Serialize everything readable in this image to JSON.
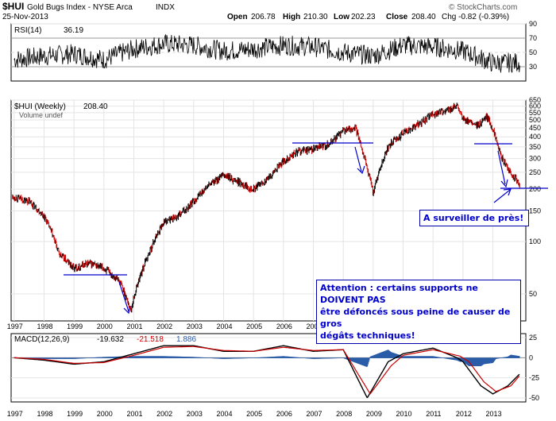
{
  "header": {
    "symbol": "$HUI",
    "name": "Gold Bugs Index - NYSE Arca",
    "exchange": "INDX",
    "date": "25-Nov-2013",
    "open_label": "Open",
    "open": "206.78",
    "high_label": "High",
    "high": "210.30",
    "low_label": "Low",
    "low": "202.23",
    "close_label": "Close",
    "close": "208.40",
    "change": "Chg -0.82 (-0.39%)",
    "watermark": "© StockCharts.com"
  },
  "rsi_panel": {
    "label": "RSI(14)",
    "value": "36.19",
    "ticks": [
      "90",
      "70",
      "50",
      "30"
    ]
  },
  "price_panel": {
    "label": "$HUI (Weekly)",
    "value": "208.40",
    "volume_label": "Volume undef",
    "ticks": [
      "650",
      "600",
      "550",
      "500",
      "450",
      "400",
      "350",
      "300",
      "250",
      "200",
      "150",
      "100",
      "50"
    ]
  },
  "macd_panel": {
    "label": "MACD(12,26,9)",
    "macd": "-19.632",
    "signal": "-21.518",
    "hist": "1.886",
    "ticks": [
      "25",
      "0",
      "-25",
      "-50"
    ]
  },
  "annotations": {
    "watch": "A surveiller de près!",
    "attention_1": "Attention : certains supports ne DOIVENT PAS",
    "attention_2": "être défoncés sous peine de causer de gros",
    "attention_3": "dégâts techniques!"
  },
  "colors": {
    "price_up": "#000000",
    "price_down": "#cc0000",
    "macd": "#000000",
    "signal": "#cc0000",
    "hist": "#2a5ca8",
    "annotation": "#0000cc",
    "grid": "#dddddd"
  },
  "chart_data": [
    {
      "type": "line",
      "title": "RSI(14)",
      "ylim": [
        10,
        90
      ],
      "ticks": [
        30,
        50,
        70,
        90
      ],
      "x": [
        1997,
        1998,
        1999,
        2000,
        2001,
        2002,
        2003,
        2004,
        2005,
        2006,
        2007,
        2008,
        2009,
        2010,
        2011,
        2012,
        2013,
        2013.9
      ],
      "values": [
        40,
        45,
        48,
        40,
        55,
        62,
        60,
        52,
        55,
        60,
        58,
        50,
        45,
        60,
        58,
        52,
        35,
        36
      ]
    },
    {
      "type": "line",
      "title": "$HUI (Weekly)",
      "scale": "log",
      "ylim": [
        35,
        650
      ],
      "x_ticks": [
        "1997",
        "1998",
        "1999",
        "2000",
        "2001",
        "2002",
        "2003",
        "2004",
        "2005",
        "2006",
        "2007",
        "2008",
        "2009",
        "2010",
        "2011",
        "2012",
        "2013"
      ],
      "x": [
        1997.0,
        1997.5,
        1998.0,
        1998.5,
        1999.0,
        1999.5,
        2000.0,
        2000.5,
        2000.9,
        2001.5,
        2002.0,
        2002.5,
        2003.0,
        2003.5,
        2004.0,
        2004.5,
        2005.0,
        2005.5,
        2006.0,
        2006.5,
        2007.0,
        2007.5,
        2008.0,
        2008.4,
        2008.8,
        2009.0,
        2009.5,
        2010.0,
        2010.5,
        2011.0,
        2011.5,
        2011.8,
        2012.0,
        2012.5,
        2012.8,
        2013.0,
        2013.3,
        2013.5,
        2013.9
      ],
      "values": [
        180,
        170,
        140,
        85,
        70,
        75,
        70,
        60,
        40,
        85,
        130,
        140,
        170,
        210,
        240,
        220,
        200,
        230,
        290,
        330,
        340,
        360,
        430,
        450,
        260,
        190,
        350,
        420,
        470,
        540,
        570,
        600,
        500,
        460,
        520,
        440,
        300,
        260,
        208
      ]
    },
    {
      "type": "line",
      "title": "MACD(12,26,9)",
      "ylim": [
        -55,
        30
      ],
      "ticks": [
        25,
        0,
        -25,
        -50
      ],
      "series": [
        {
          "name": "MACD",
          "x": [
            1997,
            1998,
            1999,
            2000,
            2001,
            2002,
            2003,
            2004,
            2005,
            2006,
            2007,
            2008,
            2008.8,
            2009.5,
            2010,
            2011,
            2011.8,
            2012,
            2012.6,
            2013,
            2013.5,
            2013.9
          ],
          "values": [
            0,
            -3,
            -8,
            -5,
            5,
            15,
            15,
            8,
            8,
            15,
            8,
            10,
            -50,
            -5,
            5,
            12,
            0,
            -5,
            -35,
            -45,
            -35,
            -20
          ]
        },
        {
          "name": "Signal",
          "x": [
            1997,
            1998,
            1999,
            2000,
            2001,
            2002,
            2003,
            2004,
            2005,
            2006,
            2007,
            2008,
            2008.9,
            2009.6,
            2010,
            2011,
            2011.9,
            2012.2,
            2012.7,
            2013.1,
            2013.6,
            2013.9
          ],
          "values": [
            0,
            -2,
            -7,
            -6,
            3,
            13,
            14,
            9,
            8,
            13,
            9,
            10,
            -45,
            -10,
            3,
            10,
            2,
            -5,
            -30,
            -42,
            -35,
            -22
          ]
        }
      ]
    }
  ]
}
